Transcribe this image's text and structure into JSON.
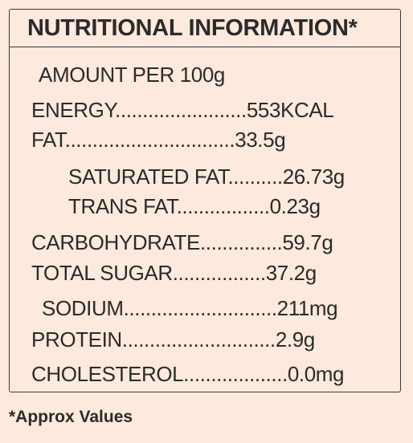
{
  "panel": {
    "title": "NUTRITIONAL INFORMATION*",
    "subtitle": "AMOUNT PER 100g",
    "rows": [
      {
        "text": "ENERGY........................553KCAL"
      },
      {
        "text": "FAT...............................33.5g"
      },
      {
        "text": "SATURATED FAT..........26.73g"
      },
      {
        "text": "TRANS FAT.................0.23g"
      },
      {
        "text": "CARBOHYDRATE...............59.7g"
      },
      {
        "text": "TOTAL SUGAR.................37.2g"
      },
      {
        "text": "SODIUM............................211mg"
      },
      {
        "text": "PROTEIN............................2.9g"
      },
      {
        "text": "CHOLESTEROL...................0.0mg"
      }
    ]
  },
  "footnote": "*Approx Values"
}
